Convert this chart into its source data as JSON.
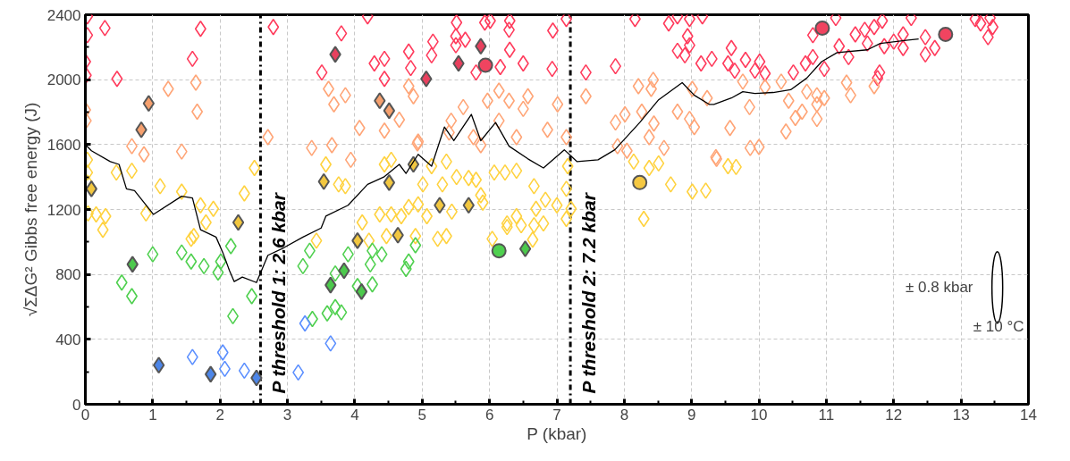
{
  "chart_data": {
    "type": "scatter",
    "xlabel": "P (kbar)",
    "ylabel": "√ΣΔG² Gibbs free energy (J)",
    "xlim": [
      0,
      14
    ],
    "xticks": [
      0,
      1,
      2,
      3,
      4,
      5,
      6,
      7,
      8,
      9,
      10,
      11,
      12,
      13,
      14
    ],
    "ylim": [
      0,
      2400
    ],
    "yticks": [
      0,
      400,
      800,
      1200,
      1600,
      2000,
      2400
    ],
    "grid": true,
    "legend": false,
    "annotations": [
      "± 0.8 kbar",
      "± 10 °C"
    ],
    "ref_lines": [
      {
        "axis": "x",
        "value": 2.6,
        "label": "P threshold 1: 2.6 kbar",
        "color": "#000000",
        "line_style": "dashdot"
      },
      {
        "axis": "x",
        "value": 7.2,
        "label": "P threshold 2: 7.2 kbar",
        "color": "#000000",
        "line_style": "dashdot"
      }
    ],
    "series": [
      {
        "marker": "diamond",
        "color": "#ff3b5c",
        "x": [
          0.03,
          0.29,
          1.71,
          0.03,
          0.0,
          1.59,
          0.01,
          0.47,
          2.79,
          4.19,
          3.8,
          3.51,
          4.29,
          4.44,
          4.44,
          4.8,
          4.83,
          5.51,
          5.93,
          6.01,
          6.3,
          6.29,
          7.14,
          6.94,
          5.16,
          5.5,
          5.64,
          5.5,
          5.14,
          5.8,
          6.16,
          6.3,
          6.5,
          6.93,
          7.43,
          7.87,
          8.16,
          8.66,
          8.79,
          8.97,
          9.16,
          8.94,
          8.97,
          8.79,
          8.9,
          9.14,
          9.3,
          9.54,
          9.59,
          9.64,
          9.8,
          9.94,
          10.01,
          10.09,
          10.51,
          10.69,
          10.8,
          10.8,
          10.97,
          11.14,
          11.19,
          11.33,
          11.43,
          11.57,
          11.61,
          11.71,
          11.83,
          11.86,
          12.0,
          12.14,
          12.14,
          11.79,
          11.76,
          12.26,
          12.47,
          12.47,
          12.61,
          13.21,
          13.43,
          13.47,
          13.4,
          13.29
        ],
        "values": [
          2390,
          2318,
          2313,
          2274,
          2111,
          2128,
          2027,
          2005,
          2324,
          2390,
          2285,
          2044,
          2100,
          2128,
          2005,
          2173,
          2072,
          2352,
          2352,
          2363,
          2363,
          2307,
          2374,
          2302,
          2234,
          2268,
          2246,
          2212,
          2150,
          2044,
          2078,
          2184,
          2100,
          2066,
          2044,
          2083,
          2374,
          2346,
          2390,
          2374,
          2390,
          2268,
          2212,
          2178,
          2150,
          2100,
          2128,
          2100,
          2195,
          2055,
          2122,
          2055,
          2111,
          2038,
          2044,
          2100,
          2139,
          2274,
          2066,
          2380,
          2206,
          2139,
          2279,
          2307,
          2223,
          2324,
          2363,
          2206,
          2234,
          2279,
          2195,
          2044,
          2010,
          2380,
          2262,
          2156,
          2195,
          2374,
          2380,
          2324,
          2262,
          2346
        ]
      },
      {
        "marker": "diamond",
        "color": "#ffa577",
        "x": [
          0.0,
          0.01,
          1.23,
          1.64,
          1.66,
          0.69,
          0.87,
          1.43,
          2.71,
          3.61,
          3.86,
          3.69,
          4.07,
          4.44,
          4.66,
          3.36,
          3.66,
          3.94,
          4.8,
          4.87,
          4.93,
          5.61,
          5.97,
          6.14,
          6.29,
          6.57,
          6.5,
          7.01,
          5.43,
          5.4,
          5.76,
          5.87,
          6.14,
          6.4,
          6.86,
          7.14,
          4.94,
          7.43,
          8.21,
          8.43,
          8.4,
          8.01,
          8.26,
          8.44,
          7.87,
          8.37,
          8.59,
          8.04,
          8.79,
          9.01,
          9.23,
          8.97,
          9.04,
          9.57,
          9.36,
          7.9,
          9.76,
          9.86,
          10.09,
          10.33,
          10.44,
          10.54,
          10.64,
          10.4,
          10.71,
          10.86,
          10.86,
          10.97,
          10.86,
          11.3,
          11.36,
          11.71,
          9.87,
          10.0,
          9.37
        ],
        "values": [
          1814,
          1747,
          1943,
          1982,
          1803,
          1590,
          1540,
          1557,
          1646,
          1943,
          1904,
          1848,
          1702,
          1686,
          1753,
          1579,
          1596,
          1506,
          1960,
          1898,
          1607,
          1831,
          1870,
          1932,
          1870,
          1898,
          1820,
          1848,
          1747,
          1674,
          1646,
          1596,
          1747,
          1646,
          1691,
          1646,
          1618,
          1898,
          1960,
          1999,
          1943,
          1786,
          1803,
          1730,
          1736,
          1646,
          1579,
          1562,
          1803,
          1943,
          1887,
          1758,
          1708,
          1702,
          1523,
          1590,
          1988,
          1831,
          1954,
          1988,
          1870,
          1764,
          1803,
          1680,
          1926,
          1904,
          1848,
          1887,
          1758,
          1982,
          1904,
          1960,
          1579,
          1585,
          1512
        ]
      },
      {
        "marker": "diamond",
        "color": "#ffd23f",
        "x": [
          0.03,
          0.03,
          0.03,
          0.04,
          0.16,
          0.3,
          0.46,
          0.69,
          1.11,
          0.9,
          1.43,
          1.71,
          1.9,
          1.79,
          2.36,
          2.51,
          3.57,
          3.76,
          3.86,
          4.11,
          4.37,
          4.54,
          4.69,
          4.8,
          4.94,
          4.44,
          4.54,
          0.26,
          1.61,
          1.57,
          4.21,
          4.47,
          4.9,
          3.43,
          5.36,
          5.14,
          6.07,
          6.23,
          6.4,
          7.16,
          5.01,
          5.3,
          5.51,
          5.69,
          5.8,
          6.66,
          7.14,
          5.07,
          5.44,
          5.87,
          5.9,
          6.26,
          6.4,
          6.69,
          6.83,
          7.0,
          7.14,
          7.21,
          8.14,
          8.37,
          8.51,
          8.69,
          9.01,
          9.21,
          8.29,
          5.23,
          5.36,
          6.04,
          6.26,
          6.47,
          6.66,
          6.8,
          6.64,
          9.54,
          9.66
        ],
        "values": [
          1506,
          1428,
          1366,
          1176,
          1170,
          1159,
          1428,
          1439,
          1344,
          1176,
          1310,
          1226,
          1204,
          1120,
          1299,
          1456,
          1478,
          1355,
          1344,
          1120,
          1170,
          1170,
          1159,
          1215,
          1232,
          1478,
          1506,
          1075,
          1036,
          1019,
          1008,
          1036,
          1036,
          1008,
          1495,
          1467,
          1428,
          1428,
          1439,
          1467,
          1355,
          1355,
          1400,
          1394,
          1383,
          1344,
          1327,
          1159,
          1187,
          1288,
          1243,
          1114,
          1159,
          1204,
          1260,
          1226,
          1142,
          1204,
          1495,
          1456,
          1484,
          1355,
          1310,
          1316,
          1142,
          1019,
          1036,
          1019,
          1092,
          1103,
          1103,
          1114,
          1014,
          1467,
          1462
        ]
      },
      {
        "marker": "diamond",
        "color": "#4fd04f",
        "x": [
          1.0,
          1.43,
          1.57,
          1.76,
          1.97,
          2.01,
          2.16,
          0.54,
          0.69,
          2.19,
          2.47,
          3.33,
          3.23,
          3.9,
          4.26,
          4.23,
          4.4,
          4.26,
          4.04,
          3.71,
          4.8,
          4.76,
          4.9,
          3.37,
          3.59,
          3.71,
          3.8
        ],
        "values": [
          924,
          935,
          879,
          851,
          812,
          879,
          974,
          750,
          666,
          543,
          666,
          946,
          851,
          924,
          946,
          862,
          924,
          739,
          728,
          806,
          879,
          834,
          980,
          526,
          560,
          599,
          566
        ]
      },
      {
        "marker": "diamond",
        "color": "#5b8fff",
        "x": [
          1.59,
          2.04,
          2.07,
          2.36,
          3.26,
          3.64,
          3.16
        ],
        "values": [
          291,
          319,
          218,
          207,
          498,
          375,
          196
        ]
      },
      {
        "marker": "diamond",
        "color": "#e8405e",
        "x": [
          3.71,
          5.87,
          5.54,
          5.06
        ],
        "values": [
          2156,
          2206,
          2100,
          2005
        ]
      },
      {
        "marker": "diamond",
        "color": "#f5a06e",
        "x": [
          0.94,
          0.83,
          4.37,
          4.51
        ],
        "values": [
          1854,
          1691,
          1870,
          1809
        ]
      },
      {
        "marker": "diamond",
        "color": "#f2c740",
        "x": [
          0.09,
          2.27,
          3.54,
          4.51,
          4.87,
          4.04,
          4.64,
          5.26,
          5.69
        ],
        "values": [
          1327,
          1120,
          1372,
          1366,
          1478,
          1008,
          1042,
          1226,
          1226
        ]
      },
      {
        "marker": "diamond",
        "color": "#4cc94c",
        "x": [
          0.7,
          3.64,
          3.84,
          4.1,
          6.53
        ],
        "values": [
          862,
          734,
          823,
          694,
          958
        ]
      },
      {
        "marker": "diamond",
        "color": "#4d86e8",
        "x": [
          1.09,
          1.86,
          2.54
        ],
        "values": [
          241,
          185,
          162
        ]
      },
      {
        "marker": "circle",
        "color": "#f04460",
        "x": [
          5.94,
          10.94,
          12.77
        ],
        "values": [
          2089,
          2318,
          2279
        ]
      },
      {
        "marker": "circle",
        "color": "#f5c842",
        "x": [
          8.23
        ],
        "values": [
          1366
        ]
      },
      {
        "marker": "circle",
        "color": "#4fd04f",
        "x": [
          6.14
        ],
        "values": [
          946
        ]
      },
      {
        "type": "line",
        "marker": "none",
        "color": "#000000",
        "x": [
          0.01,
          0.09,
          0.37,
          0.5,
          0.61,
          0.73,
          1.01,
          1.43,
          1.59,
          1.71,
          1.94,
          2.04,
          2.14,
          2.21,
          2.33,
          2.54,
          2.71,
          2.94,
          3.23,
          3.5,
          3.57,
          3.9,
          4.19,
          4.43,
          4.66,
          4.76,
          4.94,
          5.14,
          5.33,
          5.47,
          5.73,
          5.87,
          6.09,
          6.29,
          6.57,
          6.8,
          7.11,
          7.3,
          7.61,
          7.86,
          8.23,
          8.51,
          8.86,
          9.04,
          9.26,
          9.33,
          9.59,
          9.76,
          9.94,
          10.21,
          10.47,
          10.71,
          10.93,
          11.16,
          11.61,
          11.8,
          12.37
        ],
        "values": [
          1596,
          1562,
          1495,
          1478,
          1327,
          1316,
          1170,
          1282,
          1271,
          1075,
          1030,
          935,
          823,
          756,
          784,
          750,
          918,
          963,
          1030,
          1086,
          1159,
          1226,
          1355,
          1400,
          1478,
          1422,
          1540,
          1467,
          1708,
          1624,
          1786,
          1624,
          1736,
          1590,
          1512,
          1456,
          1568,
          1495,
          1506,
          1568,
          1736,
          1876,
          1982,
          1904,
          1848,
          1848,
          1887,
          1926,
          1915,
          1921,
          1938,
          2010,
          2111,
          2167,
          2184,
          2223,
          2251
        ]
      }
    ]
  }
}
